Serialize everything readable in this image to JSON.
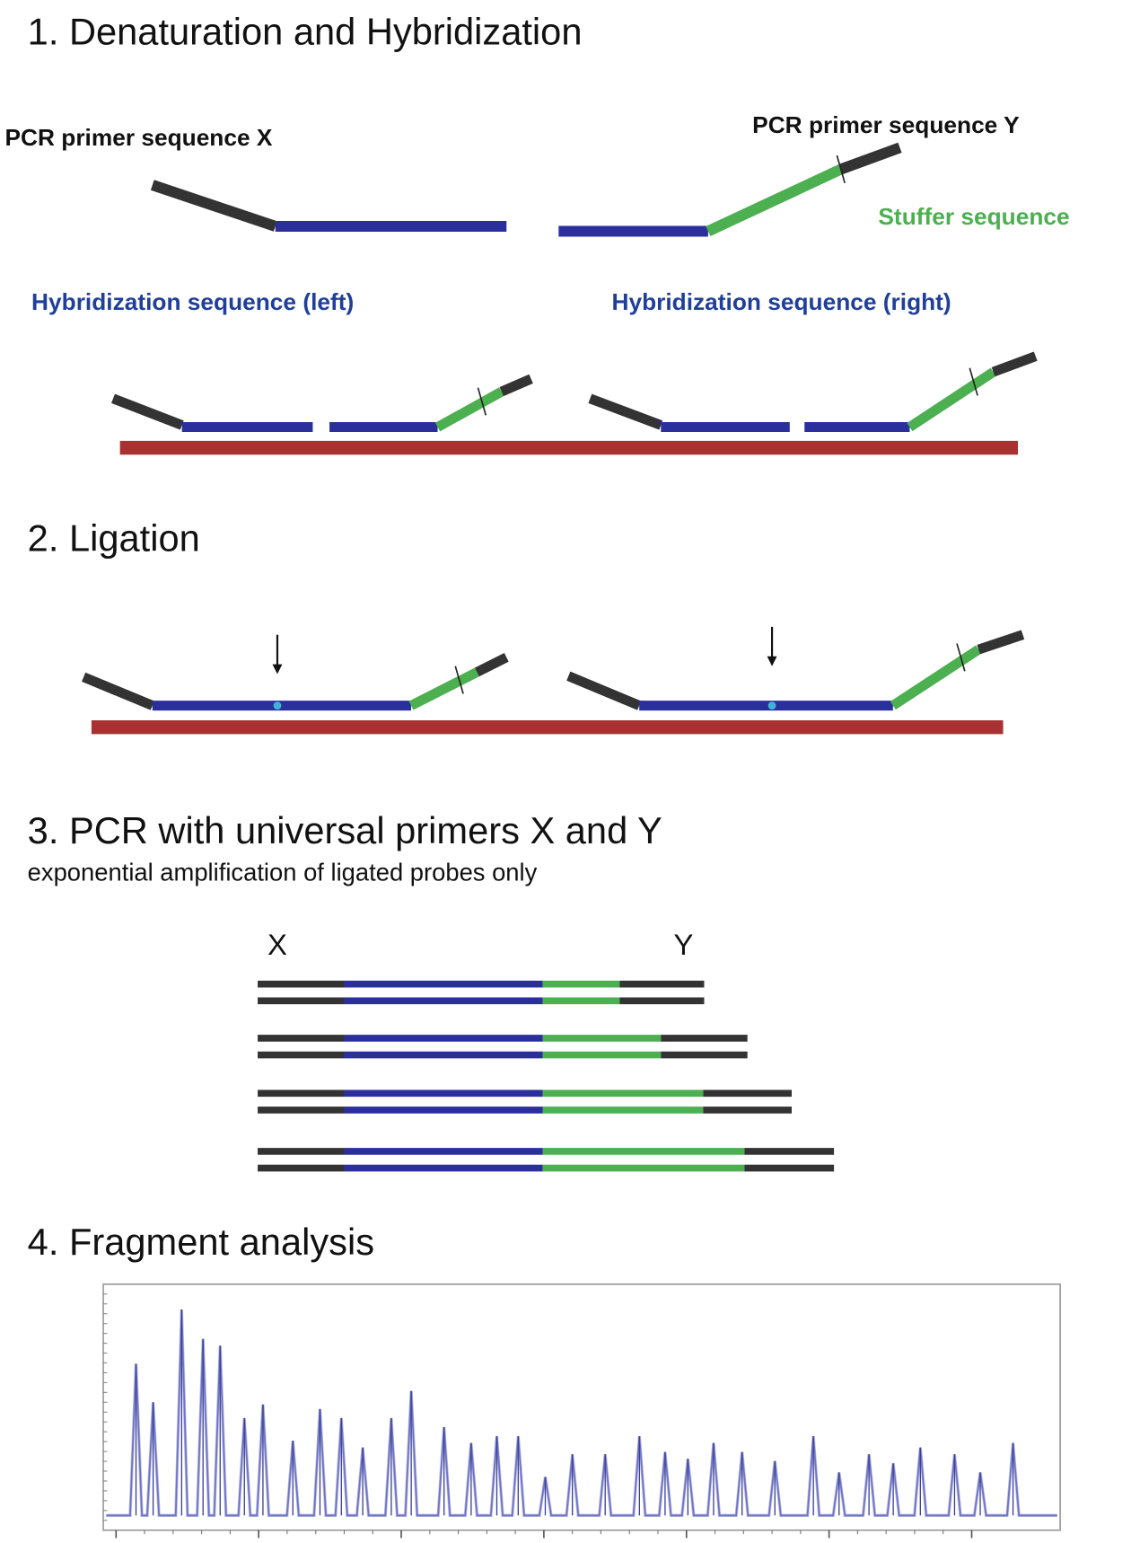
{
  "sections": {
    "s1": {
      "title": "1. Denaturation and Hybridization",
      "primer_x": "PCR primer sequence X",
      "primer_y": "PCR primer sequence Y",
      "stuffer": "Stuffer sequence",
      "hyb_left": "Hybridization sequence (left)",
      "hyb_right": "Hybridization sequence (right)"
    },
    "s2": {
      "title": "2. Ligation"
    },
    "s3": {
      "title": "3. PCR with universal primers X and Y",
      "subtitle": "exponential amplification of ligated probes only",
      "x_label": "X",
      "y_label": "Y"
    },
    "s4": {
      "title": "4. Fragment analysis"
    }
  },
  "colors": {
    "primer": "#333333",
    "hybridization": "#2b2f9c",
    "stuffer": "#4caf50",
    "target": "#a83232",
    "label_blue": "#1f3f9a",
    "label_green": "#4caf50",
    "peaks": "#6f74c4"
  },
  "chart_data": {
    "type": "line",
    "title": "",
    "xlabel": "",
    "ylabel": "",
    "grid": false,
    "x_units": "major tick intervals",
    "peaks_x": [
      0.14,
      0.26,
      0.46,
      0.61,
      0.73,
      0.9,
      1.03,
      1.24,
      1.43,
      1.58,
      1.73,
      1.93,
      2.07,
      2.3,
      2.49,
      2.67,
      2.82,
      3.01,
      3.2,
      3.43,
      3.67,
      3.85,
      4.01,
      4.19,
      4.39,
      4.62,
      4.89,
      5.07,
      5.28,
      5.45,
      5.64,
      5.88,
      6.06,
      6.29
    ],
    "peaks_height_percent": [
      67,
      50,
      91,
      78,
      75,
      43,
      49,
      33,
      47,
      43,
      30,
      43,
      55,
      39,
      32,
      35,
      35,
      17,
      27,
      27,
      35,
      28,
      25,
      32,
      28,
      24,
      35,
      19,
      27,
      23,
      30,
      27,
      19,
      32
    ],
    "xlim": [
      -0.1,
      6.5
    ],
    "ylim": [
      0,
      100
    ]
  }
}
